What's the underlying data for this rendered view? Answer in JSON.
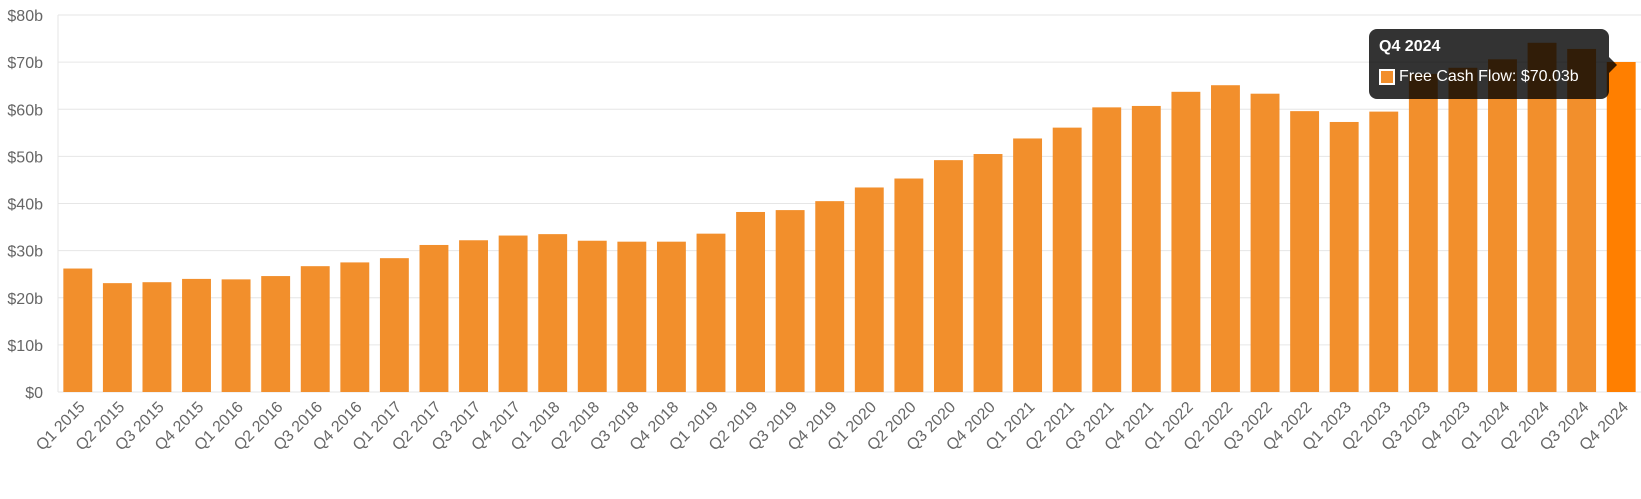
{
  "chart_data": {
    "type": "bar",
    "categories": [
      "Q1 2015",
      "Q2 2015",
      "Q3 2015",
      "Q4 2015",
      "Q1 2016",
      "Q2 2016",
      "Q3 2016",
      "Q4 2016",
      "Q1 2017",
      "Q2 2017",
      "Q3 2017",
      "Q4 2017",
      "Q1 2018",
      "Q2 2018",
      "Q3 2018",
      "Q4 2018",
      "Q1 2019",
      "Q2 2019",
      "Q3 2019",
      "Q4 2019",
      "Q1 2020",
      "Q2 2020",
      "Q3 2020",
      "Q4 2020",
      "Q1 2021",
      "Q2 2021",
      "Q3 2021",
      "Q4 2021",
      "Q1 2022",
      "Q2 2022",
      "Q3 2022",
      "Q4 2022",
      "Q1 2023",
      "Q2 2023",
      "Q3 2023",
      "Q4 2023",
      "Q1 2024",
      "Q2 2024",
      "Q3 2024",
      "Q4 2024"
    ],
    "series": [
      {
        "name": "Free Cash Flow",
        "color": "#f28f2c",
        "values": [
          26.2,
          23.1,
          23.3,
          24.0,
          23.9,
          24.6,
          26.7,
          27.5,
          28.4,
          31.2,
          32.2,
          33.2,
          33.5,
          32.1,
          31.9,
          31.9,
          33.6,
          38.2,
          38.6,
          40.5,
          43.4,
          45.3,
          49.2,
          50.5,
          53.8,
          56.1,
          60.4,
          60.7,
          63.7,
          65.1,
          63.3,
          59.6,
          57.3,
          59.5,
          67.5,
          68.8,
          70.6,
          74.1,
          72.8,
          70.03
        ]
      }
    ],
    "highlight_color": "#ff7f00",
    "y_ticks": [
      "$0",
      "$10b",
      "$20b",
      "$30b",
      "$40b",
      "$50b",
      "$60b",
      "$70b",
      "$80b"
    ],
    "ylim": [
      0,
      80
    ],
    "grid": true,
    "title": "",
    "xlabel": "",
    "ylabel": ""
  },
  "tooltip": {
    "title": "Q4 2024",
    "label": "Free Cash Flow: $70.03b"
  }
}
